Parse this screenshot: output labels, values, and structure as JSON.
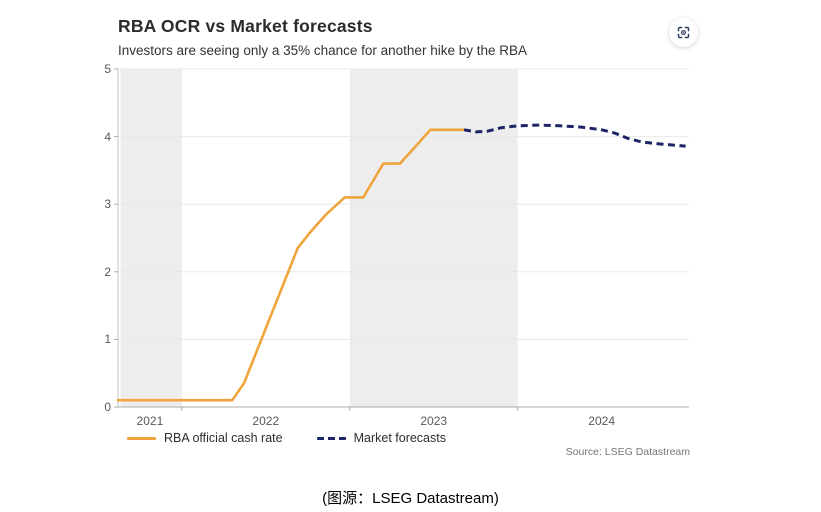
{
  "figure": {
    "title": "RBA OCR vs Market forecasts",
    "subtitle": "Investors are seeing only a 35% chance for another hike by the RBA",
    "source": "Source: LSEG Datastream",
    "scan_icon": "focus-scan-icon"
  },
  "caption": "(图源：LSEG Datastream)",
  "colors": {
    "rba_orange": "#EFA53C",
    "forecast_navy": "#1E2566",
    "band_gray": "#EDEDED",
    "grid": "#E8E8E8",
    "axis_bottom": "#ABABAB",
    "axis_left": "#C6C6C6",
    "tick_text": "#595959",
    "icon_navy": "#2C3E5D"
  },
  "chart_data": {
    "type": "line",
    "title": "RBA OCR vs Market forecasts",
    "subtitle": "Investors are seeing only a 35% chance for another hike by the RBA",
    "xlabel": "",
    "ylabel": "",
    "grid": true,
    "legend_position": "bottom-left",
    "x_axis": {
      "range": [
        2021.62,
        2025.02
      ],
      "boundary_ticks": [
        2022,
        2023,
        2024
      ],
      "year_labels": [
        {
          "text": "2021",
          "t": 2021.81
        },
        {
          "text": "2022",
          "t": 2022.5
        },
        {
          "text": "2023",
          "t": 2023.5
        },
        {
          "text": "2024",
          "t": 2024.5
        }
      ],
      "shaded_bands": [
        [
          2021.635,
          2022
        ],
        [
          2023,
          2024
        ]
      ]
    },
    "y_axis": {
      "range": [
        0,
        5
      ],
      "ticks": [
        0,
        1,
        2,
        3,
        4,
        5
      ]
    },
    "series": [
      {
        "name": "RBA official cash rate",
        "style": "solid",
        "color": "#EFA53C",
        "points": [
          [
            2021.62,
            0.1
          ],
          [
            2022.3,
            0.1
          ],
          [
            2022.37,
            0.35
          ],
          [
            2022.45,
            0.85
          ],
          [
            2022.53,
            1.35
          ],
          [
            2022.61,
            1.85
          ],
          [
            2022.69,
            2.35
          ],
          [
            2022.77,
            2.6
          ],
          [
            2022.86,
            2.85
          ],
          [
            2022.97,
            3.1
          ],
          [
            2023.08,
            3.1
          ],
          [
            2023.14,
            3.35
          ],
          [
            2023.2,
            3.6
          ],
          [
            2023.3,
            3.6
          ],
          [
            2023.32,
            3.66
          ],
          [
            2023.39,
            3.85
          ],
          [
            2023.48,
            4.1
          ],
          [
            2023.68,
            4.1
          ]
        ]
      },
      {
        "name": "Market forecasts",
        "style": "dashed",
        "color": "#1E2566",
        "points": [
          [
            2023.68,
            4.1
          ],
          [
            2023.75,
            4.07
          ],
          [
            2023.82,
            4.08
          ],
          [
            2023.9,
            4.13
          ],
          [
            2024.0,
            4.16
          ],
          [
            2024.12,
            4.17
          ],
          [
            2024.25,
            4.16
          ],
          [
            2024.38,
            4.14
          ],
          [
            2024.5,
            4.1
          ],
          [
            2024.58,
            4.05
          ],
          [
            2024.66,
            3.97
          ],
          [
            2024.74,
            3.92
          ],
          [
            2024.85,
            3.89
          ],
          [
            2025.0,
            3.86
          ]
        ]
      }
    ]
  }
}
